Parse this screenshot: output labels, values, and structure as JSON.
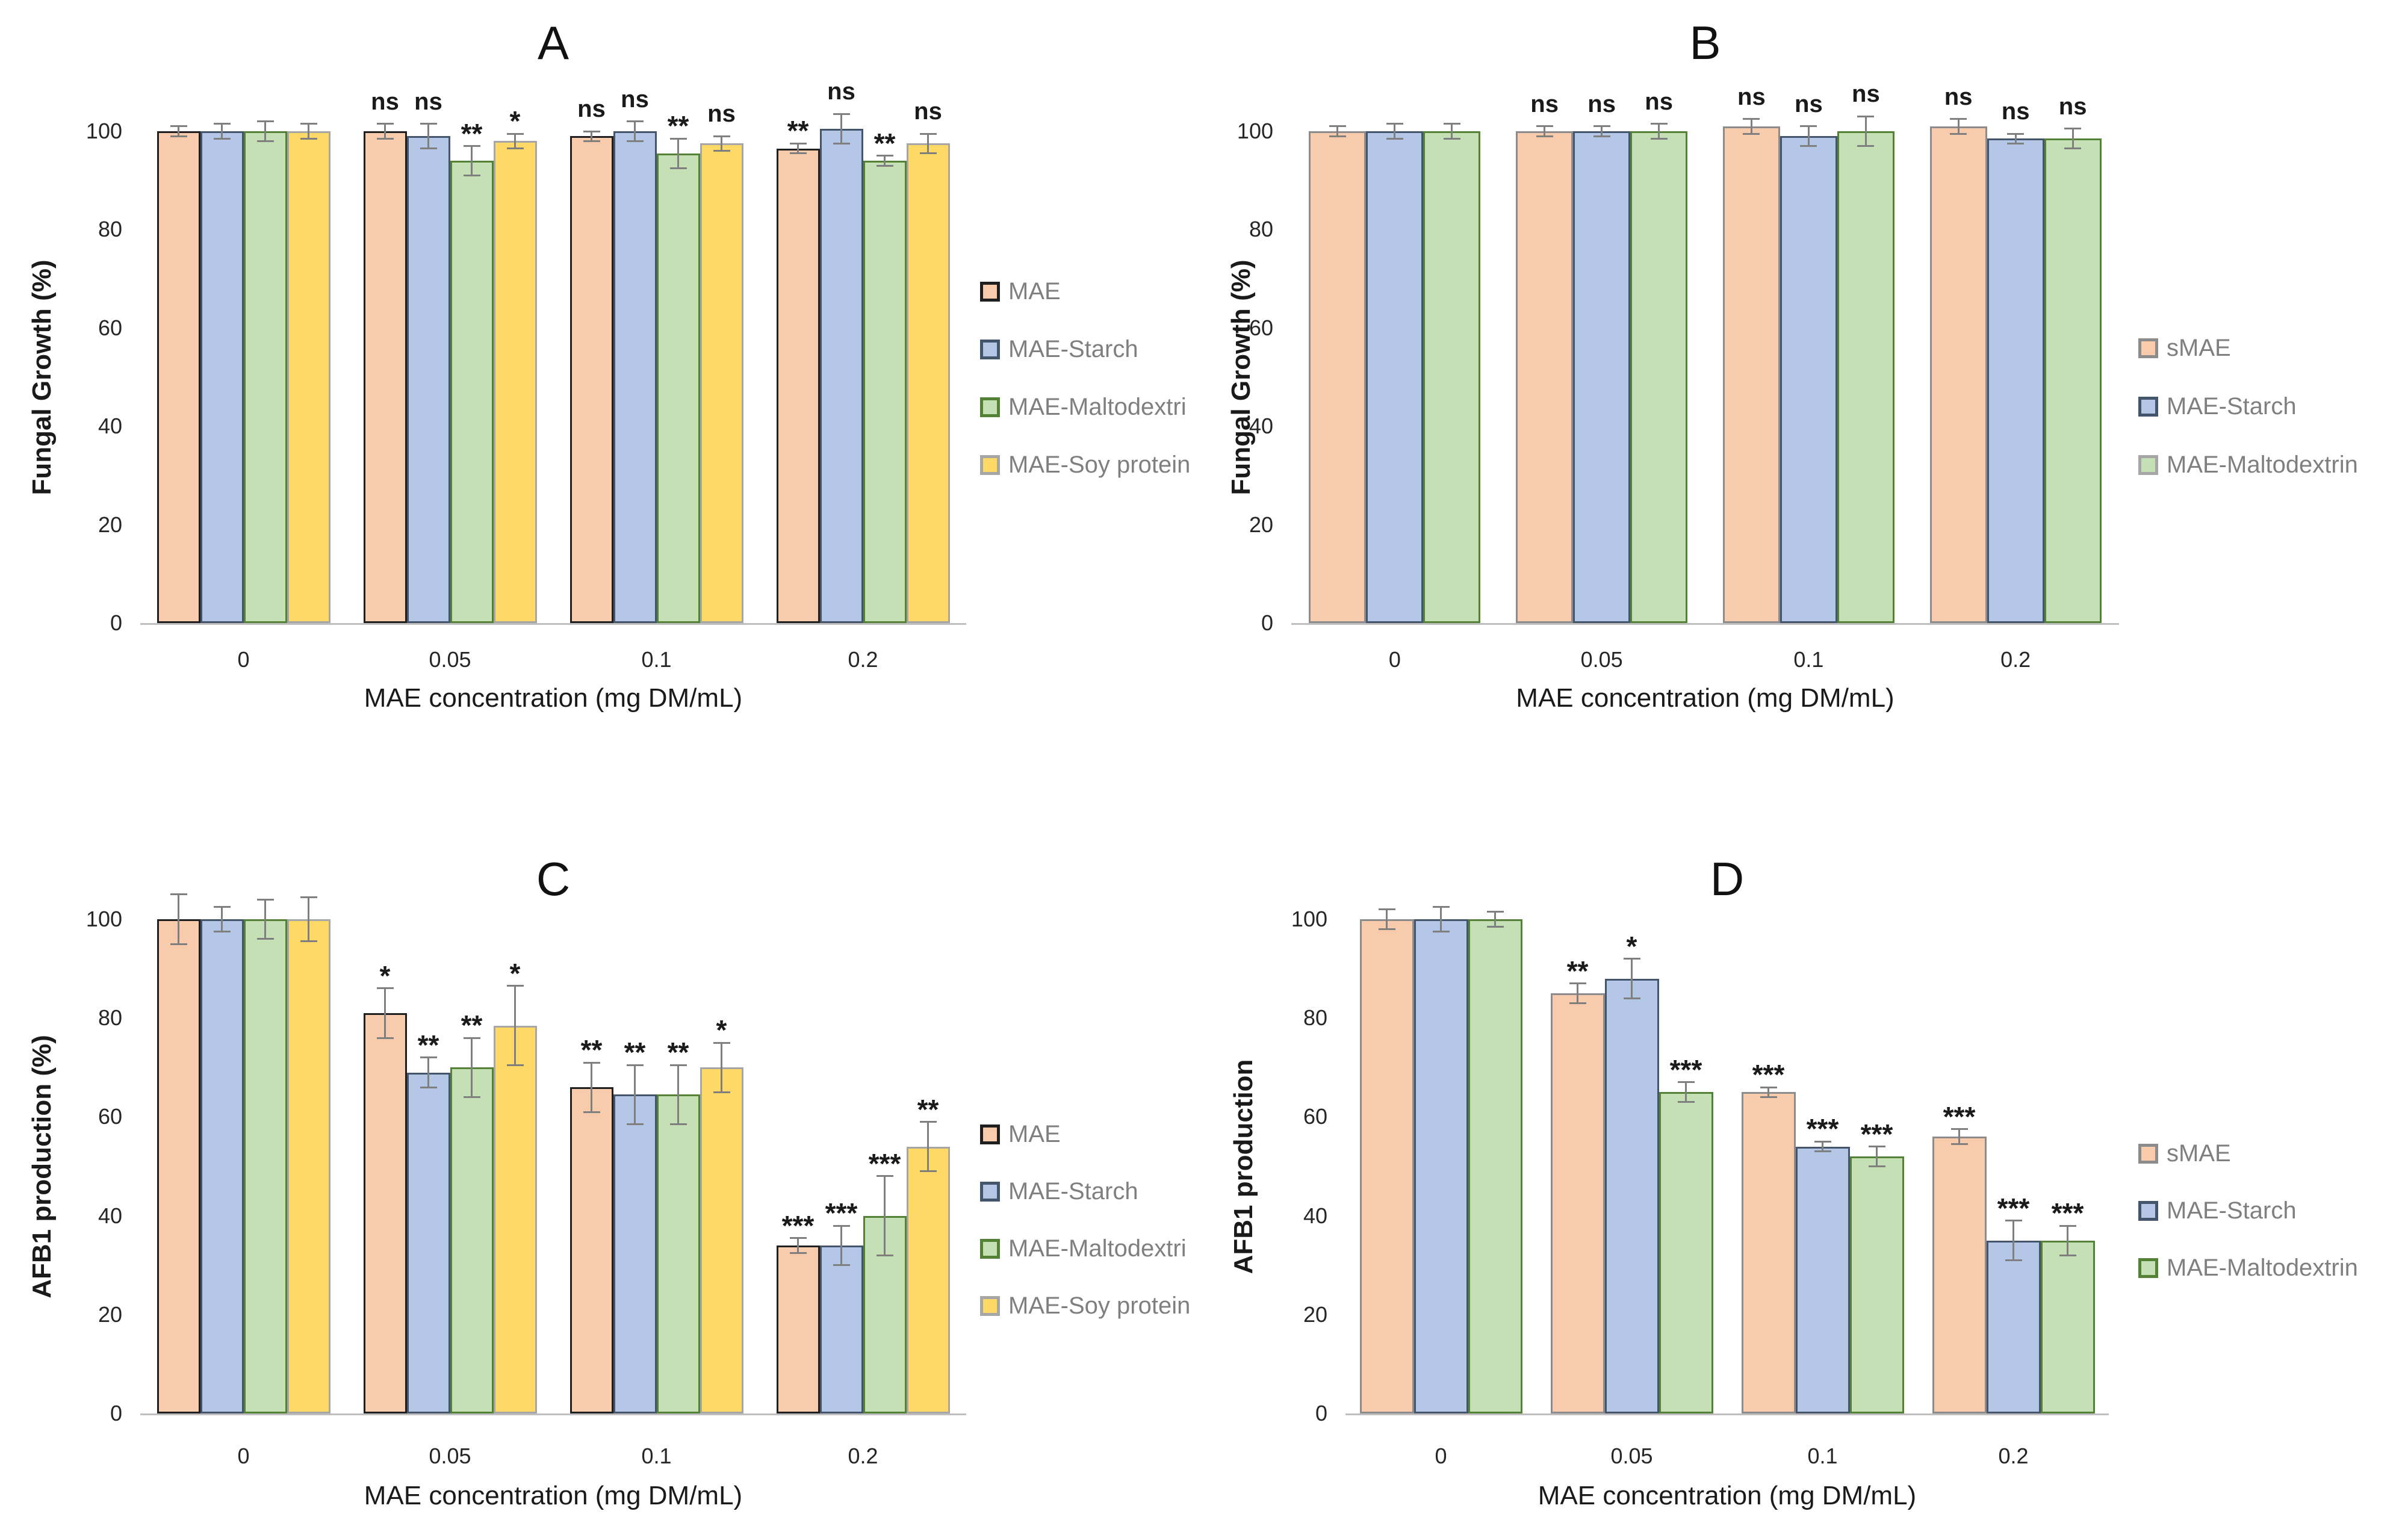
{
  "colors": {
    "background": "#FFFFFF",
    "axis_line": "#BFBFBF",
    "error_bar": "#7F7F7F",
    "tick_text": "#262626",
    "legend_text": "#7F7F7F",
    "sig_text": "#1a1a1a"
  },
  "chart_data": [
    {
      "panel": "A",
      "type": "bar",
      "title": "A",
      "xlabel": "MAE concentration (mg DM/mL)",
      "ylabel": "Fungal Growth (%)",
      "ylim": [
        0,
        100
      ],
      "yticks": [
        0,
        20,
        40,
        60,
        80,
        100
      ],
      "categories": [
        "0",
        "0.05",
        "0.1",
        "0.2"
      ],
      "grid": false,
      "legend_position": "right",
      "error_bars": true,
      "series": [
        {
          "name": "MAE",
          "fill": "#F8CBAD",
          "border": "#1F1F1F",
          "values": [
            100,
            100,
            99,
            96.5
          ],
          "errors": [
            1,
            1.5,
            1,
            1
          ],
          "sig": [
            "",
            "ns",
            "ns",
            "**"
          ]
        },
        {
          "name": "MAE-Starch",
          "fill": "#B4C7E7",
          "border": "#44546A",
          "values": [
            100,
            99,
            100,
            100.5
          ],
          "errors": [
            1.5,
            2.5,
            2,
            3
          ],
          "sig": [
            "",
            "ns",
            "ns",
            "ns"
          ]
        },
        {
          "name": "MAE-Maltodextri",
          "fill": "#C5E0B4",
          "border": "#538135",
          "values": [
            100,
            94,
            95.5,
            94
          ],
          "errors": [
            2,
            3,
            3,
            1
          ],
          "sig": [
            "",
            "**",
            "**",
            "**"
          ]
        },
        {
          "name": "MAE-Soy protein",
          "fill": "#FFD966",
          "border": "#A6A6A6",
          "values": [
            100,
            98,
            97.5,
            97.5
          ],
          "errors": [
            1.5,
            1.5,
            1.5,
            2
          ],
          "sig": [
            "",
            "*",
            "ns",
            "ns"
          ]
        }
      ]
    },
    {
      "panel": "B",
      "type": "bar",
      "title": "B",
      "xlabel": "MAE concentration (mg DM/mL)",
      "ylabel": "Fungal Growth (%)",
      "ylim": [
        0,
        100
      ],
      "yticks": [
        0,
        20,
        40,
        60,
        80,
        100
      ],
      "categories": [
        "0",
        "0.05",
        "0.1",
        "0.2"
      ],
      "grid": false,
      "legend_position": "right",
      "error_bars": true,
      "series": [
        {
          "name": "sMAE",
          "fill": "#F8CBAD",
          "border": "#8C8C8C",
          "values": [
            100,
            100,
            101,
            101
          ],
          "errors": [
            1,
            1,
            1.5,
            1.5
          ],
          "sig": [
            "",
            "ns",
            "ns",
            "ns"
          ]
        },
        {
          "name": "MAE-Starch",
          "fill": "#B4C7E7",
          "border": "#44546A",
          "values": [
            100,
            100,
            99,
            98.5
          ],
          "errors": [
            1.5,
            1,
            2,
            1
          ],
          "sig": [
            "",
            "ns",
            "ns",
            "ns"
          ]
        },
        {
          "name": "MAE-Maltodextrin",
          "fill": "#C5E0B4",
          "border": "#538135",
          "legend_border": "#A6A6A6",
          "values": [
            100,
            100,
            100,
            98.5
          ],
          "errors": [
            1.5,
            1.5,
            3,
            2
          ],
          "sig": [
            "",
            "ns",
            "ns",
            "ns"
          ]
        }
      ]
    },
    {
      "panel": "C",
      "type": "bar",
      "title": "C",
      "xlabel": "MAE concentration (mg DM/mL)",
      "ylabel": "AFB1 production (%)",
      "ylim": [
        0,
        100
      ],
      "yticks": [
        0,
        20,
        40,
        60,
        80,
        100
      ],
      "categories": [
        "0",
        "0.05",
        "0.1",
        "0.2"
      ],
      "grid": false,
      "legend_position": "right",
      "error_bars": true,
      "series": [
        {
          "name": "MAE",
          "fill": "#F8CBAD",
          "border": "#1F1F1F",
          "values": [
            100,
            81,
            66,
            34
          ],
          "errors": [
            5,
            5,
            5,
            1.5
          ],
          "sig": [
            "",
            "*",
            "**",
            "***"
          ]
        },
        {
          "name": "MAE-Starch",
          "fill": "#B4C7E7",
          "border": "#44546A",
          "values": [
            100,
            69,
            64.5,
            34
          ],
          "errors": [
            2.5,
            3,
            6,
            4
          ],
          "sig": [
            "",
            "**",
            "**",
            "***"
          ]
        },
        {
          "name": "MAE-Maltodextri",
          "fill": "#C5E0B4",
          "border": "#538135",
          "values": [
            100,
            70,
            64.5,
            40
          ],
          "errors": [
            4,
            6,
            6,
            8
          ],
          "sig": [
            "",
            "**",
            "**",
            "***"
          ]
        },
        {
          "name": "MAE-Soy protein",
          "fill": "#FFD966",
          "border": "#A6A6A6",
          "values": [
            100,
            78.5,
            70,
            54
          ],
          "errors": [
            4.5,
            8,
            5,
            5
          ],
          "sig": [
            "",
            "*",
            "*",
            "**"
          ]
        }
      ]
    },
    {
      "panel": "D",
      "type": "bar",
      "title": "D",
      "xlabel": "MAE concentration (mg DM/mL)",
      "ylabel": "AFB1 production",
      "ylim": [
        0,
        100
      ],
      "yticks": [
        0,
        20,
        40,
        60,
        80,
        100
      ],
      "categories": [
        "0",
        "0.05",
        "0.1",
        "0.2"
      ],
      "grid": false,
      "legend_position": "right",
      "error_bars": true,
      "series": [
        {
          "name": "sMAE",
          "fill": "#F8CBAD",
          "border": "#8C8C8C",
          "values": [
            100,
            85,
            65,
            56
          ],
          "errors": [
            2,
            2,
            1,
            1.5
          ],
          "sig": [
            "",
            "**",
            "***",
            "***"
          ]
        },
        {
          "name": "MAE-Starch",
          "fill": "#B4C7E7",
          "border": "#44546A",
          "values": [
            100,
            88,
            54,
            35
          ],
          "errors": [
            2.5,
            4,
            1,
            4
          ],
          "sig": [
            "",
            "*",
            "***",
            "***"
          ]
        },
        {
          "name": "MAE-Maltodextrin",
          "fill": "#C5E0B4",
          "border": "#538135",
          "values": [
            100,
            65,
            52,
            35
          ],
          "errors": [
            1.5,
            2,
            2,
            3
          ],
          "sig": [
            "",
            "***",
            "***",
            "***"
          ]
        }
      ]
    }
  ]
}
